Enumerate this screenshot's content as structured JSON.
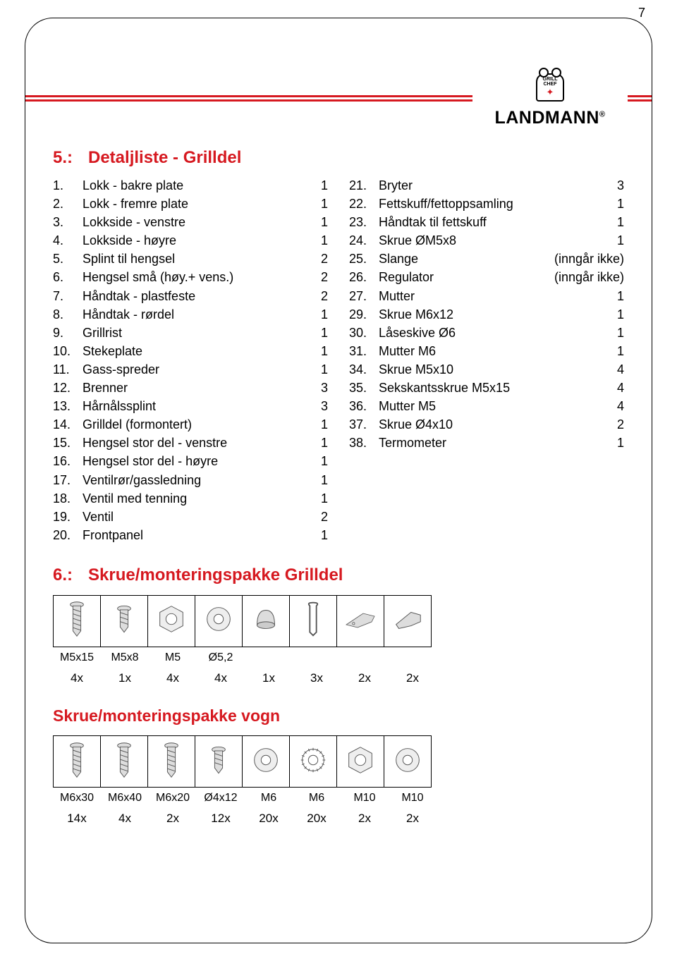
{
  "page_number": "7",
  "brand": "LANDMANN",
  "chef_label_1": "GRILL",
  "chef_label_2": "CHEF",
  "section5": {
    "number": "5.:",
    "title": "Detaljliste - Grilldel",
    "left": [
      {
        "n": "1.",
        "t": "Lokk - bakre plate",
        "q": "1"
      },
      {
        "n": "2.",
        "t": "Lokk - fremre plate",
        "q": "1"
      },
      {
        "n": "3.",
        "t": "Lokkside - venstre",
        "q": "1"
      },
      {
        "n": "4.",
        "t": "Lokkside - høyre",
        "q": "1"
      },
      {
        "n": "5.",
        "t": "Splint til hengsel",
        "q": "2"
      },
      {
        "n": "6.",
        "t": "Hengsel små (høy.+ vens.)",
        "q": "2"
      },
      {
        "n": "7.",
        "t": "Håndtak - plastfeste",
        "q": "2"
      },
      {
        "n": "8.",
        "t": "Håndtak - rørdel",
        "q": "1"
      },
      {
        "n": "9.",
        "t": "Grillrist",
        "q": "1"
      },
      {
        "n": "10.",
        "t": "Stekeplate",
        "q": "1"
      },
      {
        "n": "11.",
        "t": "Gass-spreder",
        "q": "1"
      },
      {
        "n": "12.",
        "t": "Brenner",
        "q": "3"
      },
      {
        "n": "13.",
        "t": "Hårnålssplint",
        "q": "3"
      },
      {
        "n": "14.",
        "t": "Grilldel (formontert)",
        "q": "1"
      },
      {
        "n": "15.",
        "t": "Hengsel stor del - venstre",
        "q": "1"
      },
      {
        "n": "16.",
        "t": "Hengsel stor del - høyre",
        "q": "1"
      },
      {
        "n": "17.",
        "t": "Ventilrør/gassledning",
        "q": "1"
      },
      {
        "n": "18.",
        "t": "Ventil med tenning",
        "q": "1"
      },
      {
        "n": "19.",
        "t": "Ventil",
        "q": "2"
      },
      {
        "n": "20.",
        "t": "Frontpanel",
        "q": "1"
      }
    ],
    "right": [
      {
        "n": "21.",
        "t": "Bryter",
        "q": "3"
      },
      {
        "n": "22.",
        "t": "Fettskuff/fettoppsamling",
        "q": "1"
      },
      {
        "n": "23.",
        "t": "Håndtak til fettskuff",
        "q": "1"
      },
      {
        "n": "24.",
        "t": "Skrue ØM5x8",
        "q": "1"
      },
      {
        "n": "25.",
        "t": "Slange",
        "q": "(inngår ikke)"
      },
      {
        "n": "26.",
        "t": "Regulator",
        "q": "(inngår ikke)"
      },
      {
        "n": "27.",
        "t": "Mutter",
        "q": "1"
      },
      {
        "n": "29.",
        "t": "Skrue M6x12",
        "q": "1"
      },
      {
        "n": "30.",
        "t": "Låseskive Ø6",
        "q": "1"
      },
      {
        "n": "31.",
        "t": "Mutter M6",
        "q": "1"
      },
      {
        "n": "34.",
        "t": "Skrue M5x10",
        "q": "4"
      },
      {
        "n": "35.",
        "t": "Sekskantsskrue M5x15",
        "q": "4"
      },
      {
        "n": "36.",
        "t": "Mutter M5",
        "q": "4"
      },
      {
        "n": "37.",
        "t": "Skrue Ø4x10",
        "q": "2"
      },
      {
        "n": "38.",
        "t": "Termometer",
        "q": "1"
      }
    ]
  },
  "section6": {
    "number": "6.:",
    "title": "Skrue/monteringspakke Grilldel"
  },
  "hw1": {
    "labels": [
      "M5x15",
      "M5x8",
      "M5",
      "Ø5,2",
      "",
      "",
      "",
      ""
    ],
    "qtys": [
      "4x",
      "1x",
      "4x",
      "4x",
      "1x",
      "3x",
      "2x",
      "2x"
    ]
  },
  "sub_title": "Skrue/monteringspakke vogn",
  "hw2": {
    "labels": [
      "M6x30",
      "M6x40",
      "M6x20",
      "Ø4x12",
      "M6",
      "M6",
      "M10",
      "M10"
    ],
    "qtys": [
      "14x",
      "4x",
      "2x",
      "12x",
      "20x",
      "20x",
      "2x",
      "2x"
    ]
  }
}
